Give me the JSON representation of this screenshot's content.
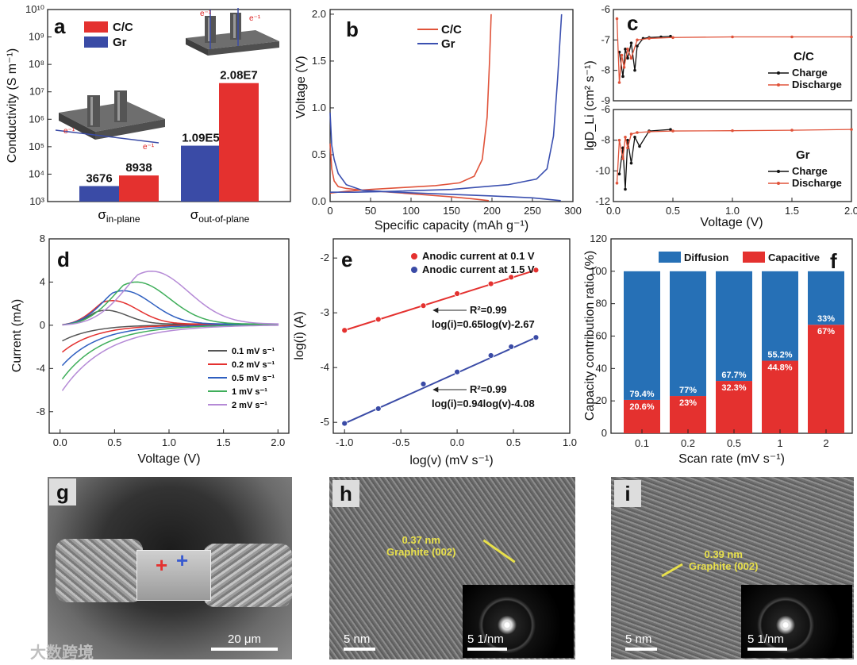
{
  "panels": {
    "a": "a",
    "b": "b",
    "c": "c",
    "d": "d",
    "e": "e",
    "f": "f",
    "g": "g",
    "h": "h",
    "i": "i"
  },
  "colors": {
    "red": "#e4312f",
    "blue": "#3a4ba6",
    "orange": "#e0533a",
    "blue2": "#3b50b0",
    "black": "#111111",
    "steel": "#2670b6"
  },
  "chart_data": [
    {
      "id": "a",
      "type": "bar",
      "categories": [
        "σ in-plane",
        "σ out-of-plane"
      ],
      "category_main": [
        "σ",
        "σ"
      ],
      "category_sub": [
        "in-plane",
        "out-of-plane"
      ],
      "series": [
        {
          "name": "Gr",
          "values": [
            3676,
            109000
          ]
        },
        {
          "name": "C/C",
          "values": [
            8938,
            20800000
          ]
        }
      ],
      "labels": [
        [
          "3676",
          "1.09E5"
        ],
        [
          "8938",
          "2.08E7"
        ]
      ],
      "ylabel": "Conductivity (S m⁻¹)",
      "yscale": "log",
      "ylim": [
        1000,
        10000000000
      ],
      "yticks": [
        "10³",
        "10⁴",
        "10⁵",
        "10⁶",
        "10⁷",
        "10⁸",
        "10⁹",
        "10¹⁰"
      ],
      "electron": "e⁻¹"
    },
    {
      "id": "b",
      "type": "line",
      "xlabel": "Specific capacity (mAh g⁻¹)",
      "ylabel": "Voltage (V)",
      "xlim": [
        0,
        300
      ],
      "ylim": [
        0,
        2.05
      ],
      "xticks": [
        "0",
        "50",
        "100",
        "150",
        "200",
        "250",
        "300"
      ],
      "yticks": [
        "0.0",
        "0.5",
        "1.0",
        "1.5",
        "2.0"
      ],
      "series": [
        {
          "name": "C/C",
          "discharge": [
            [
              0,
              0.62
            ],
            [
              2,
              0.35
            ],
            [
              5,
              0.22
            ],
            [
              10,
              0.16
            ],
            [
              20,
              0.14
            ],
            [
              40,
              0.12
            ],
            [
              60,
              0.11
            ],
            [
              90,
              0.09
            ],
            [
              120,
              0.07
            ],
            [
              150,
              0.05
            ],
            [
              175,
              0.03
            ],
            [
              196,
              0.01
            ]
          ],
          "charge": [
            [
              0,
              0.09
            ],
            [
              20,
              0.11
            ],
            [
              50,
              0.13
            ],
            [
              90,
              0.15
            ],
            [
              130,
              0.17
            ],
            [
              160,
              0.2
            ],
            [
              178,
              0.27
            ],
            [
              188,
              0.45
            ],
            [
              194,
              0.9
            ],
            [
              197,
              1.5
            ],
            [
              199,
              2.0
            ]
          ]
        },
        {
          "name": "Gr",
          "discharge": [
            [
              0,
              0.95
            ],
            [
              2,
              0.6
            ],
            [
              5,
              0.45
            ],
            [
              10,
              0.3
            ],
            [
              20,
              0.18
            ],
            [
              40,
              0.12
            ],
            [
              80,
              0.1
            ],
            [
              140,
              0.08
            ],
            [
              200,
              0.06
            ],
            [
              250,
              0.04
            ],
            [
              285,
              0.01
            ]
          ],
          "charge": [
            [
              0,
              0.1
            ],
            [
              30,
              0.1
            ],
            [
              80,
              0.11
            ],
            [
              150,
              0.13
            ],
            [
              220,
              0.18
            ],
            [
              255,
              0.24
            ],
            [
              268,
              0.35
            ],
            [
              276,
              0.7
            ],
            [
              281,
              1.3
            ],
            [
              286,
              2.0
            ]
          ]
        }
      ]
    },
    {
      "id": "c",
      "type": "line",
      "xlabel": "Voltage (V)",
      "ylabel": "lgD_Li (cm² s⁻¹)",
      "xlim": [
        0,
        2.0
      ],
      "xticks": [
        "0.0",
        "0.5",
        "1.0",
        "1.5",
        "2.0"
      ],
      "top": {
        "title": "C/C",
        "ylim": [
          -9,
          -6
        ],
        "yticks": [
          "-6",
          "-7",
          "-8",
          "-9"
        ],
        "series": [
          {
            "name": "Charge",
            "x": [
              0.05,
              0.08,
              0.1,
              0.12,
              0.15,
              0.18,
              0.2,
              0.25,
              0.3,
              0.4,
              0.48
            ],
            "y": [
              -7.4,
              -8.2,
              -7.3,
              -7.6,
              -7.1,
              -8.0,
              -7.2,
              -6.95,
              -6.92,
              -6.9,
              -6.88
            ]
          },
          {
            "name": "Discharge",
            "x": [
              0.03,
              0.05,
              0.07,
              0.09,
              0.12,
              0.15,
              0.2,
              0.3,
              0.5,
              1.0,
              1.5,
              2.0
            ],
            "y": [
              -6.3,
              -8.4,
              -7.5,
              -7.9,
              -7.3,
              -7.6,
              -7.0,
              -6.95,
              -6.92,
              -6.9,
              -6.9,
              -6.9
            ]
          }
        ]
      },
      "bottom": {
        "title": "Gr",
        "ylim": [
          -12,
          -6
        ],
        "yticks": [
          "-6",
          "-8",
          "-10",
          "-12"
        ],
        "series": [
          {
            "name": "Charge",
            "x": [
              0.05,
              0.08,
              0.1,
              0.12,
              0.15,
              0.18,
              0.22,
              0.3,
              0.48
            ],
            "y": [
              -10.2,
              -8.5,
              -11.2,
              -8.0,
              -9.5,
              -7.8,
              -8.4,
              -7.4,
              -7.3
            ]
          },
          {
            "name": "Discharge",
            "x": [
              0.03,
              0.05,
              0.08,
              0.1,
              0.12,
              0.15,
              0.2,
              0.3,
              0.5,
              1.0,
              1.5,
              2.0
            ],
            "y": [
              -10.8,
              -8.0,
              -9.2,
              -7.8,
              -8.5,
              -7.6,
              -7.5,
              -7.45,
              -7.4,
              -7.38,
              -7.35,
              -7.3
            ]
          }
        ]
      }
    },
    {
      "id": "d",
      "type": "line",
      "xlabel": "Voltage (V)",
      "ylabel": "Current (mA)",
      "xlim": [
        -0.1,
        2.1
      ],
      "ylim": [
        -10,
        8
      ],
      "xticks": [
        "0.0",
        "0.5",
        "1.0",
        "1.5",
        "2.0"
      ],
      "yticks": [
        "8",
        "4",
        "0",
        "-4",
        "-8"
      ],
      "series": [
        {
          "name": "0.1 mV s⁻¹",
          "peak": [
            0.42,
            1.3
          ],
          "low": -1.5
        },
        {
          "name": "0.2 mV s⁻¹",
          "peak": [
            0.48,
            2.2
          ],
          "low": -2.6
        },
        {
          "name": "0.5 mV s⁻¹",
          "peak": [
            0.58,
            3.1
          ],
          "low": -3.9
        },
        {
          "name": "1 mV s⁻¹",
          "peak": [
            0.7,
            3.9
          ],
          "low": -5.2
        },
        {
          "name": "2 mV s⁻¹",
          "peak": [
            0.84,
            4.9
          ],
          "low": -6.3
        }
      ]
    },
    {
      "id": "e",
      "type": "scatter",
      "xlabel": "log(v) (mV s⁻¹)",
      "ylabel": "log(i) (A)",
      "xlim": [
        -1.1,
        1.0
      ],
      "ylim": [
        -5.2,
        -1.65
      ],
      "xticks": [
        "-1.0",
        "-0.5",
        "0.0",
        "0.5",
        "1.0"
      ],
      "yticks": [
        "-2",
        "-3",
        "-4",
        "-5"
      ],
      "series": [
        {
          "name": "Anodic current at 0.1 V",
          "x": [
            -1.0,
            -0.7,
            -0.3,
            0.0,
            0.3,
            0.48,
            0.7
          ],
          "y": [
            -3.32,
            -3.12,
            -2.87,
            -2.65,
            -2.47,
            -2.35,
            -2.22
          ],
          "fit": "log(i)=0.65log(v)-2.67",
          "r2": "R²=0.99"
        },
        {
          "name": "Anodic current at 1.5 V",
          "x": [
            -1.0,
            -0.7,
            -0.3,
            0.0,
            0.3,
            0.48,
            0.7
          ],
          "y": [
            -5.02,
            -4.75,
            -4.3,
            -4.08,
            -3.78,
            -3.62,
            -3.45
          ],
          "fit": "log(i)=0.94log(v)-4.08",
          "r2": "R²=0.99"
        }
      ]
    },
    {
      "id": "f",
      "type": "bar",
      "stacked": true,
      "categories": [
        "0.1",
        "0.2",
        "0.5",
        "1",
        "2"
      ],
      "series": [
        {
          "name": "Capacitive",
          "values": [
            20.6,
            23,
            32.3,
            44.8,
            67
          ],
          "labels": [
            "20.6%",
            "23%",
            "32.3%",
            "44.8%",
            "67%"
          ]
        },
        {
          "name": "Diffusion",
          "values": [
            79.4,
            77,
            67.7,
            55.2,
            33
          ],
          "labels": [
            "79.4%",
            "77%",
            "67.7%",
            "55.2%",
            "33%"
          ]
        }
      ],
      "xlabel": "Scan rate (mV s⁻¹)",
      "ylabel": "Capacity contribution ratio (%)",
      "ylim": [
        0,
        120
      ],
      "yticks": [
        "0",
        "20",
        "40",
        "60",
        "80",
        "100",
        "120"
      ]
    }
  ],
  "images": {
    "g": {
      "scale": "20 μm"
    },
    "h": {
      "scale": "5 nm",
      "inset_scale": "5 1/nm",
      "spacing": "0.37 nm",
      "plane": "Graphite (002)"
    },
    "i": {
      "scale": "5 nm",
      "inset_scale": "5 1/nm",
      "spacing": "0.39 nm",
      "plane": "Graphite (002)"
    }
  },
  "watermark": "大数跨境"
}
